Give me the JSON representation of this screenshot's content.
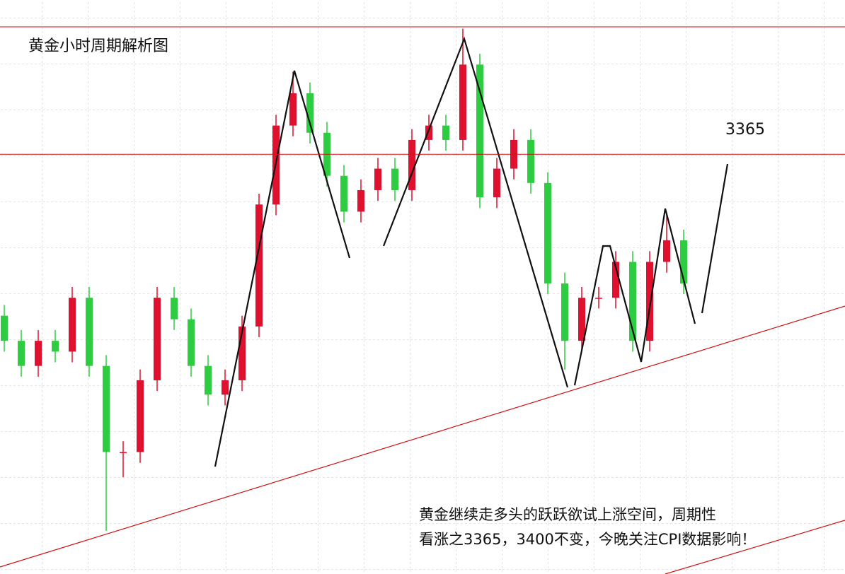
{
  "chart_data": {
    "type": "candlestick",
    "title": "黄金小时周期解析图",
    "annotation": [
      "黄金继续走多头的跃跃欲试上涨空间，周期性",
      "看涨之3365，3400不变，今晚关注CPI数据影响！"
    ],
    "level_label": 3365,
    "ylim": [
      3408,
      3248
    ],
    "up_color": "#e0102f",
    "down_color": "#2ecc40",
    "open": [
      3320,
      3313,
      3306,
      3313,
      3310,
      3325,
      3306,
      3282,
      3282,
      3302,
      3325,
      3319,
      3306,
      3298,
      3302,
      3317,
      3351,
      3373,
      3382,
      3371,
      3359,
      3349,
      3355,
      3361,
      3355,
      3369,
      3373,
      3369,
      3390,
      3353,
      3361,
      3369,
      3357,
      3329,
      3313,
      3325,
      3325,
      3335,
      3313,
      3335,
      3341
    ],
    "high": [
      3323,
      3316,
      3316,
      3316,
      3328,
      3328,
      3309,
      3285,
      3305,
      3328,
      3328,
      3322,
      3309,
      3305,
      3320,
      3354,
      3376,
      3388,
      3385,
      3374,
      3362,
      3358,
      3364,
      3364,
      3372,
      3376,
      3376,
      3400,
      3393,
      3364,
      3372,
      3372,
      3360,
      3332,
      3328,
      3328,
      3338,
      3338,
      3338,
      3348,
      3344
    ],
    "low": [
      3310,
      3303,
      3303,
      3307,
      3307,
      3303,
      3260,
      3275,
      3279,
      3299,
      3316,
      3303,
      3295,
      3295,
      3299,
      3314,
      3348,
      3370,
      3368,
      3356,
      3346,
      3346,
      3352,
      3352,
      3352,
      3366,
      3366,
      3366,
      3350,
      3350,
      3358,
      3354,
      3326,
      3305,
      3310,
      3322,
      3322,
      3310,
      3310,
      3332,
      3326
    ],
    "close": [
      3313,
      3306,
      3313,
      3310,
      3325,
      3306,
      3282,
      3282,
      3302,
      3325,
      3319,
      3306,
      3298,
      3302,
      3317,
      3351,
      3373,
      3382,
      3371,
      3359,
      3349,
      3355,
      3361,
      3355,
      3369,
      3373,
      3369,
      3390,
      3353,
      3361,
      3369,
      3357,
      3329,
      3313,
      3325,
      3325,
      3335,
      3313,
      3335,
      3341,
      3329
    ]
  }
}
